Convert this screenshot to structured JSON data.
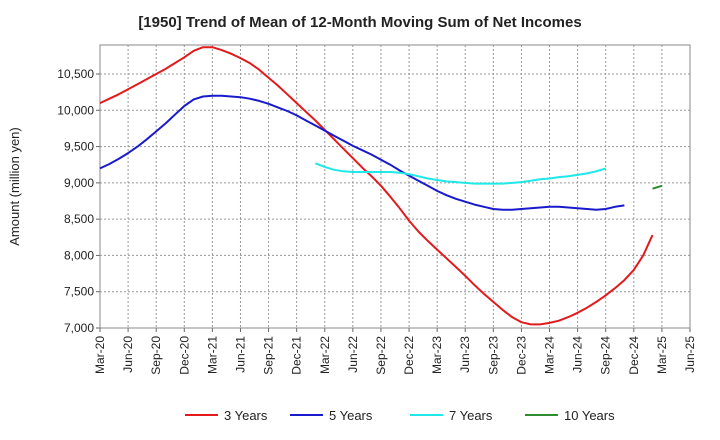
{
  "chart_data": {
    "type": "line",
    "title": "[1950]  Trend of Mean of 12-Month Moving Sum of Net Incomes",
    "xlabel": "",
    "ylabel": "Amount (million yen)",
    "ylim": [
      7000,
      10900
    ],
    "yticks": [
      7000,
      7500,
      8000,
      8500,
      9000,
      9500,
      10000,
      10500
    ],
    "ytick_labels": [
      "7,000",
      "7,500",
      "8,000",
      "8,500",
      "9,000",
      "9,500",
      "10,000",
      "10,500"
    ],
    "x_tick_labels": [
      "Mar-20",
      "Jun-20",
      "Sep-20",
      "Dec-20",
      "Mar-21",
      "Jun-21",
      "Sep-21",
      "Dec-21",
      "Mar-22",
      "Jun-22",
      "Sep-22",
      "Dec-22",
      "Mar-23",
      "Jun-23",
      "Sep-23",
      "Dec-23",
      "Mar-24",
      "Jun-24",
      "Sep-24",
      "Dec-24",
      "Mar-25",
      "Jun-25"
    ],
    "grid": true,
    "legend_position": "bottom",
    "series": [
      {
        "name": "3 Years",
        "color": "#e31a1c",
        "start": "Mar-20",
        "values": [
          10100,
          10160,
          10220,
          10290,
          10360,
          10430,
          10500,
          10570,
          10650,
          10730,
          10820,
          10870,
          10870,
          10830,
          10780,
          10720,
          10650,
          10560,
          10450,
          10340,
          10220,
          10100,
          9980,
          9860,
          9730,
          9600,
          9470,
          9340,
          9210,
          9090,
          8960,
          8810,
          8650,
          8480,
          8330,
          8200,
          8080,
          7960,
          7840,
          7720,
          7590,
          7470,
          7360,
          7250,
          7150,
          7080,
          7050,
          7050,
          7070,
          7100,
          7150,
          7210,
          7280,
          7360,
          7450,
          7550,
          7660,
          7800,
          8000,
          8280
        ]
      },
      {
        "name": "5 Years",
        "color": "#1a1acd",
        "start": "Mar-20",
        "values": [
          9200,
          9260,
          9330,
          9410,
          9500,
          9600,
          9710,
          9820,
          9940,
          10060,
          10150,
          10190,
          10200,
          10200,
          10190,
          10180,
          10160,
          10130,
          10090,
          10040,
          9990,
          9930,
          9860,
          9790,
          9720,
          9650,
          9580,
          9510,
          9450,
          9390,
          9320,
          9250,
          9170,
          9100,
          9030,
          8960,
          8890,
          8830,
          8780,
          8740,
          8700,
          8670,
          8640,
          8630,
          8630,
          8640,
          8650,
          8660,
          8670,
          8670,
          8660,
          8650,
          8640,
          8630,
          8640,
          8670,
          8690
        ]
      },
      {
        "name": "7 Years",
        "color": "#1ee8e8",
        "start": "Feb-22",
        "values": [
          9270,
          9220,
          9180,
          9160,
          9150,
          9150,
          9150,
          9150,
          9150,
          9140,
          9120,
          9090,
          9060,
          9040,
          9020,
          9010,
          9000,
          8990,
          8990,
          8990,
          8990,
          9000,
          9010,
          9030,
          9050,
          9060,
          9080,
          9090,
          9110,
          9130,
          9160,
          9200
        ]
      },
      {
        "name": "10 Years",
        "color": "#2e8b2e",
        "start": "Feb-25",
        "values": [
          8920,
          8960
        ]
      }
    ]
  }
}
